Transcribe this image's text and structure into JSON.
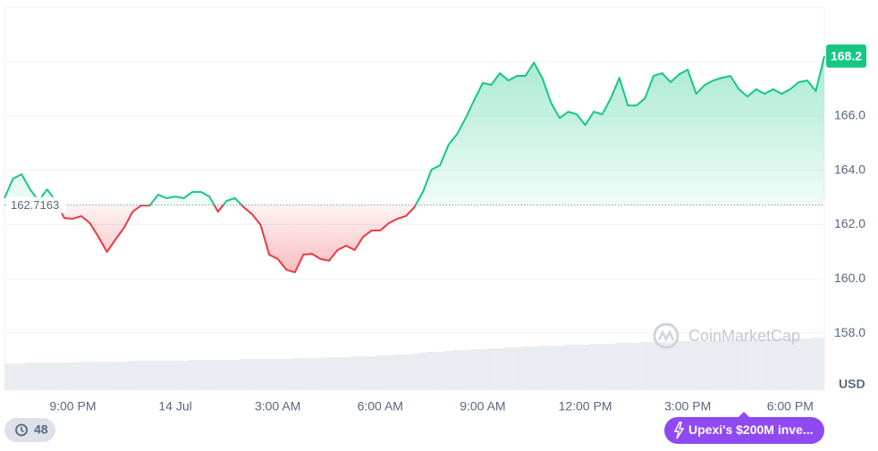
{
  "chart_data": {
    "type": "line",
    "categories": [
      null,
      null,
      null,
      null,
      null,
      null,
      null,
      null,
      "9:00 PM",
      null,
      null,
      null,
      null,
      null,
      null,
      null,
      null,
      null,
      null,
      null,
      "14 Jul",
      null,
      null,
      null,
      null,
      null,
      null,
      null,
      null,
      null,
      null,
      null,
      "3:00 AM",
      null,
      null,
      null,
      null,
      null,
      null,
      null,
      null,
      null,
      null,
      null,
      "6:00 AM",
      null,
      null,
      null,
      null,
      null,
      null,
      null,
      null,
      null,
      null,
      null,
      "9:00 AM",
      null,
      null,
      null,
      null,
      null,
      null,
      null,
      null,
      null,
      null,
      null,
      "12:00 PM",
      null,
      null,
      null,
      null,
      null,
      null,
      null,
      null,
      null,
      null,
      null,
      "3:00 PM",
      null,
      null,
      null,
      null,
      null,
      null,
      null,
      null,
      null,
      null,
      null,
      "6:00 PM",
      null,
      null,
      null,
      null
    ],
    "values": [
      162.97,
      163.69,
      163.85,
      163.29,
      162.87,
      163.29,
      162.87,
      162.24,
      162.21,
      162.31,
      162.05,
      161.55,
      160.99,
      161.45,
      161.88,
      162.47,
      162.7,
      162.7,
      163.1,
      162.97,
      163.03,
      162.97,
      163.2,
      163.2,
      163.03,
      162.47,
      162.87,
      162.97,
      162.64,
      162.38,
      161.98,
      160.89,
      160.73,
      160.34,
      160.24,
      160.89,
      160.92,
      160.73,
      160.67,
      161.06,
      161.22,
      161.06,
      161.55,
      161.78,
      161.78,
      162.05,
      162.21,
      162.31,
      162.64,
      163.2,
      164.02,
      164.18,
      164.94,
      165.33,
      165.92,
      166.58,
      167.21,
      167.14,
      167.57,
      167.3,
      167.47,
      167.47,
      167.96,
      167.37,
      166.48,
      165.92,
      166.15,
      166.06,
      165.66,
      166.15,
      166.06,
      166.65,
      167.4,
      166.38,
      166.38,
      166.65,
      167.47,
      167.57,
      167.24,
      167.53,
      167.7,
      166.81,
      167.14,
      167.3,
      167.4,
      167.47,
      166.98,
      166.71,
      166.98,
      166.81,
      166.98,
      166.81,
      166.98,
      167.24,
      167.3,
      166.91,
      168.2
    ],
    "baseline": 162.7163,
    "color_up": "#16c784",
    "color_down": "#ea3943",
    "ylim": [
      155.9,
      170
    ],
    "yticks": [
      {
        "value": 158,
        "label": "158.0"
      },
      {
        "value": 160,
        "label": "160.0"
      },
      {
        "value": 162,
        "label": "162.0"
      },
      {
        "value": 164,
        "label": "164.0"
      },
      {
        "value": 166,
        "label": "166.0"
      },
      {
        "value": 168,
        "label": "168.0"
      }
    ],
    "grid": true,
    "unit": "USD",
    "volume": [
      30,
      30,
      30,
      31,
      31,
      31,
      31,
      31,
      31,
      32,
      32,
      32,
      32,
      32,
      32,
      33,
      33,
      33,
      33,
      33,
      33,
      33,
      34,
      34,
      34,
      34,
      34,
      34,
      35,
      35,
      35,
      35,
      35,
      35,
      36,
      36,
      36,
      36,
      37,
      37,
      37,
      38,
      38,
      38,
      39,
      39,
      40,
      40,
      41,
      42,
      43,
      43,
      44,
      45,
      45,
      46,
      46,
      47,
      47,
      48,
      48,
      49,
      49,
      50,
      50,
      50,
      51,
      51,
      51,
      52,
      52,
      52,
      53,
      53,
      53,
      54,
      54,
      54,
      54,
      55,
      55,
      55,
      55,
      56,
      56,
      56,
      56,
      57,
      57,
      57,
      57,
      58,
      58,
      58,
      58,
      59,
      59
    ],
    "volume_lim": [
      0,
      429
    ],
    "volume_color": "#e9ecf1",
    "watermark": "CoinMarketCap"
  },
  "badges": {
    "history": 48,
    "news": "Upexi's $200M inve..."
  }
}
